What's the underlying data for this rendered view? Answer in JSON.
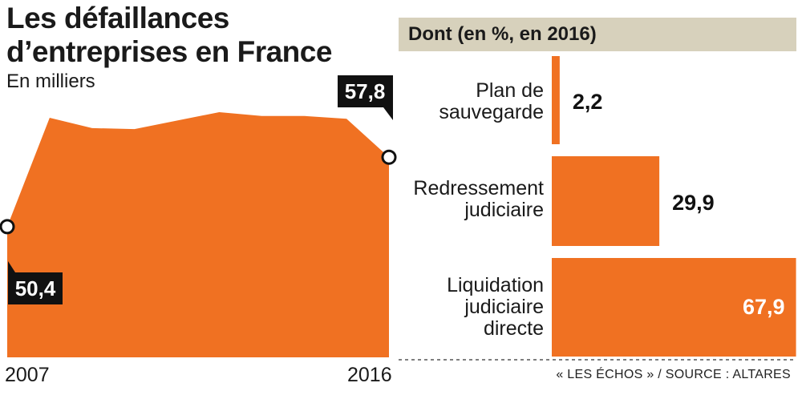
{
  "title_lines": [
    "Les défaillances",
    "d’entreprises en France"
  ],
  "subtitle": "En milliers",
  "panel_header": "Dont (en %, en 2016)",
  "source": "« LES ÉCHOS » / SOURCE : ALTARES",
  "colors": {
    "orange": "#f07122",
    "black": "#111111",
    "header_bg": "#d7d1bc",
    "white": "#ffffff"
  },
  "chart_data": [
    {
      "type": "area",
      "title": "Les défaillances d’entreprises en France",
      "ylabel": "En milliers",
      "x": [
        2007,
        2008,
        2009,
        2010,
        2011,
        2012,
        2013,
        2014,
        2015,
        2016
      ],
      "values": [
        50.4,
        62.0,
        60.9,
        60.8,
        61.7,
        62.6,
        62.2,
        62.2,
        61.9,
        57.8
      ],
      "x_tick_labels": [
        "2007",
        "2016"
      ],
      "ylim": [
        0,
        64
      ],
      "data_labels": [
        {
          "x": 2007,
          "label": "50,4"
        },
        {
          "x": 2016,
          "label": "57,8"
        }
      ],
      "grid": false
    },
    {
      "type": "bar",
      "orientation": "horizontal",
      "title": "Dont (en %, en 2016)",
      "categories": [
        {
          "lines": [
            "Plan de",
            "sauvegarde"
          ]
        },
        {
          "lines": [
            "Redressement",
            "judiciaire"
          ]
        },
        {
          "lines": [
            "Liquidation",
            "judiciaire",
            "directe"
          ]
        }
      ],
      "values": [
        2.2,
        29.9,
        67.9
      ],
      "value_labels": [
        "2,2",
        "29,9",
        "67,9"
      ],
      "xlim": [
        0,
        68
      ]
    }
  ]
}
